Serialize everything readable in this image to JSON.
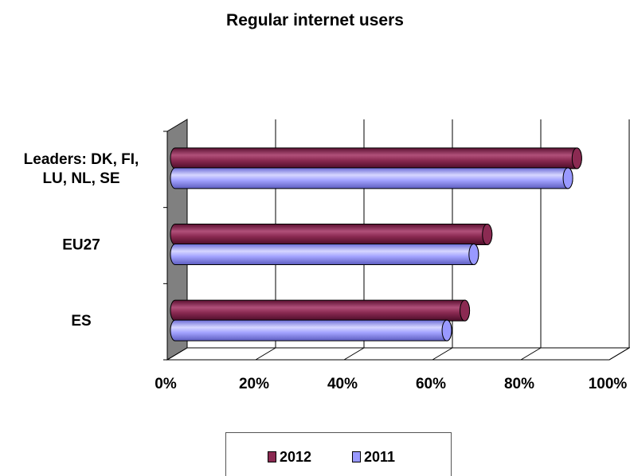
{
  "chart_data": {
    "type": "bar",
    "orientation": "horizontal",
    "title": "Regular internet users",
    "categories": [
      "Leaders: DK, FI, LU, NL, SE",
      "EU27",
      "ES"
    ],
    "category_label_lines": [
      [
        "Leaders: DK, FI,",
        "LU, NL, SE"
      ],
      [
        "EU27"
      ],
      [
        "ES"
      ]
    ],
    "series": [
      {
        "name": "2012",
        "color": "#8b2a52",
        "values": [
          91,
          71,
          66
        ]
      },
      {
        "name": "2011",
        "color": "#9999ff",
        "values": [
          89,
          68,
          62
        ]
      }
    ],
    "xlim": [
      0,
      100
    ],
    "x_ticks": [
      "0%",
      "20%",
      "40%",
      "60%",
      "80%",
      "100%"
    ],
    "grid": true,
    "legend_position": "bottom",
    "style": "3d-cylinder"
  },
  "legend": {
    "items": [
      {
        "label": "2012",
        "color": "#8b2a52"
      },
      {
        "label": "2011",
        "color": "#9999ff"
      }
    ]
  }
}
